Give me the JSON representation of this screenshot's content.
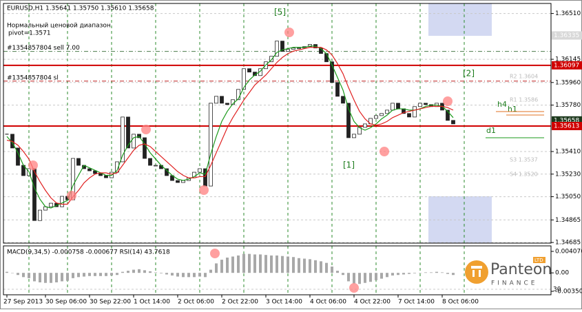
{
  "chart_data": {
    "type": "candlestick",
    "title": "EURUSD,H1  1.35641 1.35750 1.35610 1.35658",
    "annotations": [
      "Нормальный ценовой диапазон",
      "pivot=1.3571",
      "[5]",
      "[1]",
      "[2]",
      "h4",
      "h1",
      "d1",
      "R2 1.3604",
      "R1 1.3586",
      "S3 1.3537",
      "S4 1.3520"
    ],
    "categories": [
      "27 Sep 2013",
      null,
      null,
      null,
      null,
      null,
      null,
      "30 Sep 06:00",
      null,
      null,
      null,
      null,
      null,
      null,
      null,
      "30 Sep 22:00",
      null,
      null,
      null,
      null,
      null,
      null,
      null,
      "1 Oct 14:00",
      null,
      null,
      null,
      null,
      null,
      null,
      null,
      "2 Oct 06:00",
      null,
      null,
      null,
      null,
      null,
      null,
      null,
      "2 Oct 22:00",
      null,
      null,
      null,
      null,
      null,
      null,
      null,
      "3 Oct 14:00",
      null,
      null,
      null,
      null,
      null,
      null,
      null,
      "4 Oct 06:00",
      null,
      null,
      null,
      null,
      null,
      null,
      null,
      "4 Oct 22:00",
      null,
      null,
      null,
      null,
      null,
      null,
      null,
      "7 Oct 14:00",
      null,
      null,
      null,
      null,
      null,
      null,
      null,
      "8 Oct 06:00",
      null,
      null
    ],
    "close": [
      1.35548,
      1.35438,
      1.353,
      1.35218,
      1.35273,
      1.3486,
      1.34943,
      1.3497,
      1.34998,
      1.3497,
      1.35053,
      1.35025,
      1.35355,
      1.353,
      1.35273,
      1.35256,
      1.35234,
      1.35218,
      1.35201,
      1.35245,
      1.35328,
      1.35685,
      1.35438,
      1.35548,
      1.3552,
      1.35355,
      1.353,
      1.353,
      1.35273,
      1.35218,
      1.35179,
      1.35163,
      1.35179,
      1.35201,
      1.35245,
      1.35273,
      1.35135,
      1.35795,
      1.3585,
      1.35795,
      1.35784,
      1.35823,
      1.35905,
      1.3607,
      1.36043,
      1.36015,
      1.3607,
      1.36125,
      1.36169,
      1.3629,
      1.36208,
      1.36224,
      1.36235,
      1.36235,
      1.36246,
      1.36263,
      1.36235,
      1.36191,
      1.36125,
      1.3596,
      1.3585,
      1.35795,
      1.3552,
      1.35548,
      1.35603,
      1.3563,
      1.35674,
      1.35696,
      1.35713,
      1.3574,
      1.35795,
      1.35751,
      1.35713,
      1.35685,
      1.35768,
      1.35795,
      1.35784,
      1.35768,
      1.35795,
      1.3574,
      1.35658,
      1.3563
    ],
    "series": [
      {
        "color": "#1a9a1a",
        "values": [
          1.3553,
          1.3548,
          1.354,
          1.353,
          1.3525,
          1.3512,
          1.3503,
          1.3497,
          1.3496,
          1.3498,
          1.35,
          1.3502,
          1.3514,
          1.3522,
          1.353,
          1.3528,
          1.3526,
          1.3524,
          1.3522,
          1.3522,
          1.3526,
          1.3538,
          1.3546,
          1.3552,
          1.3553,
          1.3547,
          1.354,
          1.3535,
          1.353,
          1.3526,
          1.3522,
          1.3519,
          1.3518,
          1.3519,
          1.3521,
          1.3524,
          1.3523,
          1.3539,
          1.3553,
          1.3565,
          1.3573,
          1.3579,
          1.3583,
          1.3592,
          1.3598,
          1.3602,
          1.3605,
          1.361,
          1.3614,
          1.362,
          1.3622,
          1.3623,
          1.3624,
          1.3624,
          1.3624,
          1.3625,
          1.3625,
          1.3623,
          1.3619,
          1.361,
          1.36,
          1.359,
          1.3575,
          1.3565,
          1.356,
          1.3558,
          1.356,
          1.3563,
          1.3567,
          1.357,
          1.3574,
          1.3575,
          1.3575,
          1.3574,
          1.3574,
          1.3575,
          1.3577,
          1.3578,
          1.3578,
          1.3577,
          1.3573,
          1.3568
        ]
      },
      {
        "color": "#e02020",
        "values": [
          1.355,
          1.3549,
          1.3546,
          1.3541,
          1.3535,
          1.3525,
          1.3517,
          1.351,
          1.3504,
          1.35,
          1.3499,
          1.3499,
          1.3505,
          1.351,
          1.3516,
          1.352,
          1.3523,
          1.3524,
          1.3524,
          1.3523,
          1.3524,
          1.353,
          1.3536,
          1.3542,
          1.3546,
          1.3547,
          1.3545,
          1.3541,
          1.3537,
          1.3533,
          1.3529,
          1.3525,
          1.3522,
          1.352,
          1.352,
          1.3521,
          1.3521,
          1.353,
          1.354,
          1.355,
          1.356,
          1.3568,
          1.3575,
          1.3582,
          1.3588,
          1.3594,
          1.3598,
          1.3602,
          1.3607,
          1.3612,
          1.3616,
          1.3619,
          1.3621,
          1.3622,
          1.3623,
          1.3624,
          1.3624,
          1.3624,
          1.3622,
          1.3618,
          1.3611,
          1.3603,
          1.3592,
          1.3582,
          1.3573,
          1.3567,
          1.3563,
          1.3562,
          1.3563,
          1.3565,
          1.3568,
          1.357,
          1.3572,
          1.3573,
          1.3574,
          1.3575,
          1.3576,
          1.3577,
          1.3577,
          1.3577,
          1.3576,
          1.3574
        ]
      }
    ],
    "levels": [
      {
        "value": 1.36208,
        "label": "#1354857804 sell 7.00",
        "color": "#4a7a4a"
      },
      {
        "value": 1.35971,
        "label": "#1354857804 sl",
        "color": "#c02020"
      }
    ],
    "markers": [
      {
        "value": 1.36335,
        "color": "#d8d8d8"
      },
      {
        "value": 1.36097,
        "color": "#d00000"
      },
      {
        "value": 1.35658,
        "color": "#1e3a1e"
      },
      {
        "value": 1.35613,
        "color": "#d00000"
      }
    ],
    "ylim": [
      1.3468,
      1.3659
    ],
    "yticks": [
      {
        "value": 1.3651,
        "label": "1.36510"
      },
      1.36145,
      {
        "value": 1.3596,
        "label": "1.35960"
      },
      {
        "value": 1.3578,
        "label": "1.35780"
      },
      {
        "value": 1.3541,
        "label": "1.35410"
      },
      {
        "value": 1.3523,
        "label": "1.35230"
      },
      {
        "value": 1.3505,
        "label": "1.35050"
      },
      1.34865,
      1.34685
    ],
    "grid": true,
    "macd": {
      "title": "MACD(9,34,5) -0.000758 -0.000677  RSI(14) 43.7618",
      "color": "#a8a8a8",
      "values": [
        0.0002,
        0,
        -0.0004,
        -0.0008,
        -0.001,
        -0.0016,
        -0.0018,
        -0.0019,
        -0.0019,
        -0.0018,
        -0.0016,
        -0.0015,
        -0.001,
        -0.0008,
        -0.0007,
        -0.0006,
        -0.0006,
        -0.0006,
        -0.0006,
        -0.0005,
        -0.0004,
        0.0002,
        0.0004,
        0.0006,
        0.0007,
        0.0005,
        0.0003,
        0.0001,
        -0.0001,
        -0.0003,
        -0.0005,
        -0.0007,
        -0.0008,
        -0.0008,
        -0.0008,
        -0.0007,
        -0.0008,
        0.0006,
        0.0018,
        0.0025,
        0.0029,
        0.0031,
        0.0033,
        0.0036,
        0.0036,
        0.0035,
        0.0035,
        0.0034,
        0.0033,
        0.0033,
        0.0032,
        0.0031,
        0.003,
        0.0028,
        0.0027,
        0.0026,
        0.0024,
        0.0022,
        0.0019,
        0.0012,
        0.0004,
        -0.0004,
        -0.0016,
        -0.002,
        -0.0021,
        -0.0019,
        -0.0017,
        -0.0014,
        -0.0011,
        -0.0008,
        -0.0005,
        -0.0004,
        -0.0003,
        -0.0002,
        -0.0001,
        0,
        0.0001,
        0.0001,
        0.0002,
        0.0001,
        -0.0002,
        -0.0004
      ],
      "ylim": [
        -0.004156,
        0.005122
      ],
      "yticks": [
        0.004076,
        {
          "value": 0,
          "label": "0.00"
        },
        -0.003503
      ],
      "y2lim": [
        23.8,
        78.5
      ],
      "y2ticks": [
        30
      ]
    },
    "logo": [
      "Panteon",
      "FINANCE",
      "LTD"
    ]
  }
}
